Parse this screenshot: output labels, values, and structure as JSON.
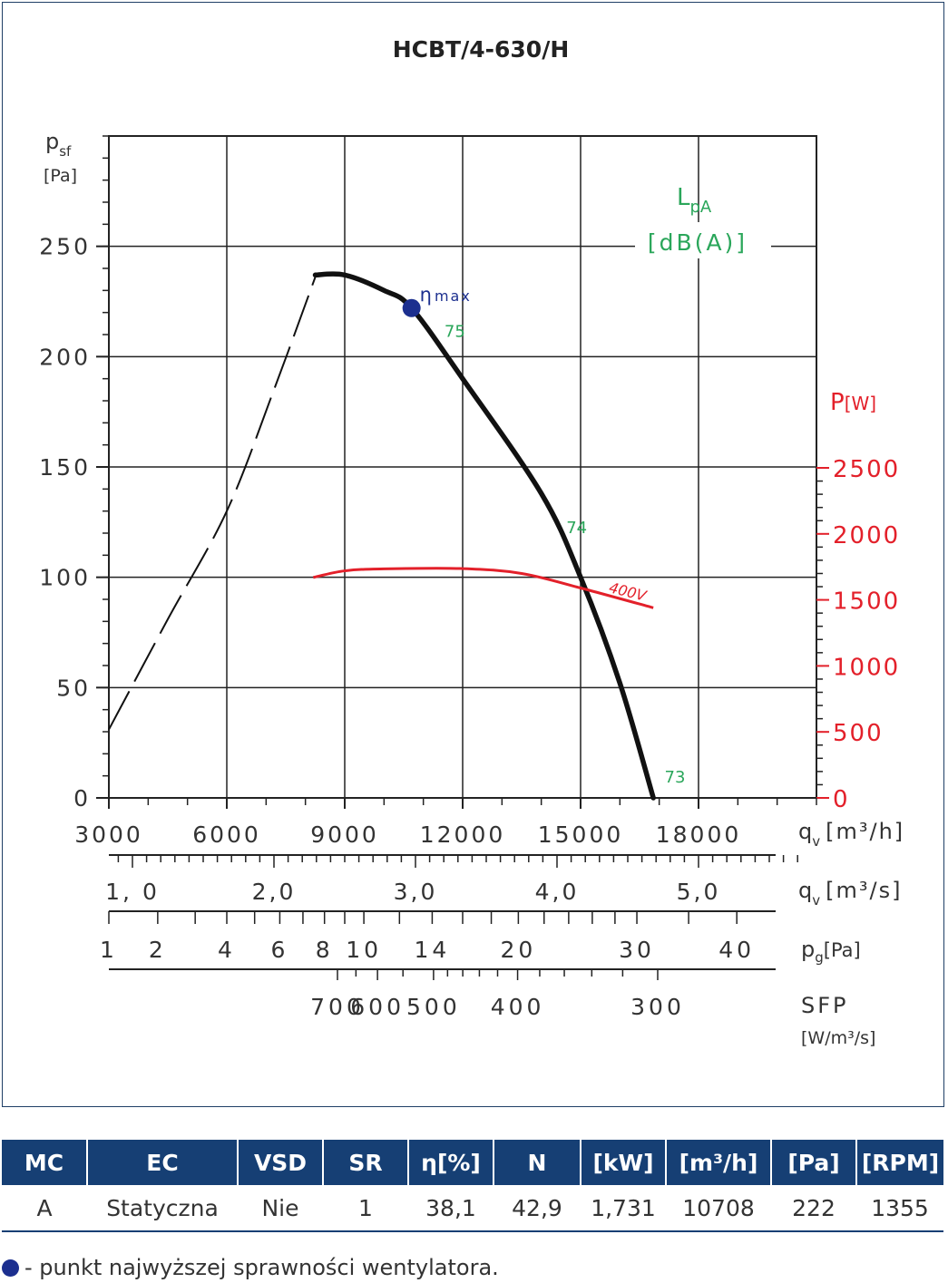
{
  "chart_data": {
    "type": "line",
    "title": "HCBT/4-630/H",
    "y_axis": {
      "label_main": "p",
      "label_sub": "sf",
      "unit": "[Pa]",
      "ylim": [
        0,
        300
      ],
      "ticks": [
        0,
        50,
        100,
        150,
        200,
        250
      ]
    },
    "x_axis": {
      "unit_main": "q",
      "unit_sub": "v",
      "unit": "[m³/h]",
      "xlim": [
        3000,
        21000
      ],
      "ticks": [
        3000,
        6000,
        9000,
        12000,
        15000,
        18000
      ]
    },
    "power_axis": {
      "label": "P",
      "unit": "[W]",
      "range": [
        0,
        2500
      ],
      "ticks": [
        0,
        500,
        1000,
        1500,
        2000,
        2500
      ]
    },
    "noise_label": {
      "main": "L",
      "sub": "pA",
      "unit": "[dB(A)]"
    },
    "scale_m3s": {
      "label": "q",
      "sub": "v",
      "unit": "[m³/s]",
      "ticks": [
        {
          "value": 1.0,
          "text": "1, 0"
        },
        {
          "value": 2.0,
          "text": "2,0"
        },
        {
          "value": 3.0,
          "text": "3,0"
        },
        {
          "value": 4.0,
          "text": "4,0"
        },
        {
          "value": 5.0,
          "text": "5,0"
        }
      ]
    },
    "scale_pg": {
      "label": "p",
      "sub": "g",
      "unit": "[Pa]",
      "ticks": [
        {
          "value": 1,
          "text": "1"
        },
        {
          "value": 2,
          "text": "2"
        },
        {
          "value": 4,
          "text": "4"
        },
        {
          "value": 6,
          "text": "6"
        },
        {
          "value": 8,
          "text": "8"
        },
        {
          "value": 10,
          "text": "10"
        },
        {
          "value": 14,
          "text": "14"
        },
        {
          "value": 20,
          "text": "20"
        },
        {
          "value": 30,
          "text": "30"
        },
        {
          "value": 40,
          "text": "40"
        }
      ]
    },
    "scale_sfp": {
      "label": "SFP",
      "unit": "[W/m³/s]",
      "ticks": [
        {
          "value": 700,
          "text": "700"
        },
        {
          "value": 600,
          "text": "600"
        },
        {
          "value": 500,
          "text": "500"
        },
        {
          "value": 400,
          "text": "400"
        },
        {
          "value": 300,
          "text": "300"
        }
      ]
    },
    "series": [
      {
        "role": "pressure_dashed",
        "x": [
          3000,
          4500,
          6000,
          7200,
          8250
        ],
        "y": [
          31,
          81,
          130,
          185,
          236
        ]
      },
      {
        "role": "pressure",
        "x": [
          8250,
          9000,
          10000,
          10700,
          12000,
          14000,
          15000,
          16000,
          16850
        ],
        "y": [
          237,
          237,
          230,
          222,
          190,
          138,
          100,
          52,
          0
        ]
      },
      {
        "role": "power",
        "name": "400V",
        "x": [
          8200,
          9000,
          10000,
          12000,
          13500,
          15000,
          16850
        ],
        "y": [
          1670,
          1720,
          1735,
          1737,
          1700,
          1590,
          1440
        ]
      }
    ],
    "noise_points": [
      {
        "x": 11800,
        "y": 209,
        "value": "75"
      },
      {
        "x": 14900,
        "y": 120,
        "value": "74"
      },
      {
        "x": 17400,
        "y": 7,
        "value": "73"
      }
    ],
    "eta_max": {
      "x": 10700,
      "y": 222,
      "label": "η",
      "label_sub": "max"
    }
  },
  "table": {
    "headers": [
      "MC",
      "EC",
      "VSD",
      "SR",
      "η[%]",
      "N",
      "[kW]",
      "[m³/h]",
      "[Pa]",
      "[RPM]"
    ],
    "row": [
      "A",
      "Statyczna",
      "Nie",
      "1",
      "38,1",
      "42,9",
      "1,731",
      "10708",
      "222",
      "1355"
    ]
  },
  "footnote": "- punkt najwyższej sprawności wentylatora.",
  "colors": {
    "pressure": "#111111",
    "power": "#e3202a",
    "noise": "#2aa65a",
    "eta": "#1c2f8f",
    "table_header": "#163f74",
    "frame": "#1f3f66"
  }
}
